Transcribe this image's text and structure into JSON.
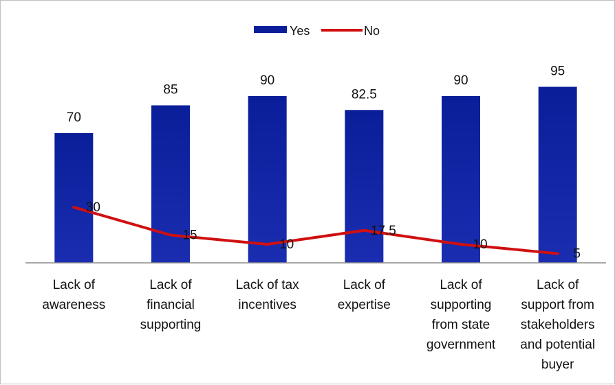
{
  "chart_data": {
    "type": "bar",
    "title": "",
    "xlabel": "",
    "ylabel": "",
    "ylim": [
      0,
      100
    ],
    "grid": false,
    "legend_position": "top-center",
    "categories": [
      [
        "Lack of",
        "awareness"
      ],
      [
        "Lack of",
        "financial",
        "supporting"
      ],
      [
        "Lack of tax",
        "incentives"
      ],
      [
        "Lack of",
        "expertise"
      ],
      [
        "Lack of",
        "supporting",
        "from state",
        "government"
      ],
      [
        "Lack of",
        "support from",
        "stakeholders",
        "and potential",
        "buyer"
      ]
    ],
    "series": [
      {
        "name": "Yes",
        "kind": "bar",
        "color_top": "#0A1E9A",
        "color_bottom": "#1A2DB0",
        "values": [
          70,
          85,
          90,
          82.5,
          90,
          95
        ],
        "labels": [
          "70",
          "85",
          "90",
          "82.5",
          "90",
          "95"
        ]
      },
      {
        "name": "No",
        "kind": "line",
        "color": "#D01010",
        "values": [
          30,
          15,
          10,
          17.5,
          10,
          5
        ],
        "labels": [
          "30",
          "15",
          "10",
          "17.5",
          "10",
          "5"
        ]
      }
    ]
  }
}
